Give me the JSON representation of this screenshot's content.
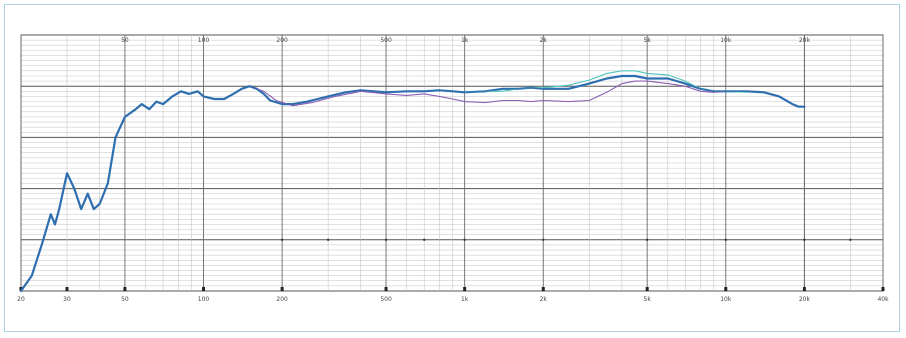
{
  "chart_data": {
    "type": "line",
    "title": "",
    "xlabel": "",
    "ylabel": "",
    "x_scale": "log",
    "xlim": [
      20,
      40000
    ],
    "y_rows": 5,
    "grid": true,
    "top_tick_labels": [
      "50",
      "100",
      "200",
      "500",
      "1k",
      "2k",
      "5k",
      "10k",
      "20k"
    ],
    "bottom_tick_labels": [
      "20",
      "30",
      "50",
      "100",
      "200",
      "500",
      "1k",
      "2k",
      "5k",
      "10k",
      "20k",
      "40k"
    ],
    "bottom_tick_values": [
      20,
      30,
      50,
      100,
      200,
      500,
      1000,
      2000,
      5000,
      10000,
      20000,
      40000
    ],
    "series": [
      {
        "color": "#2f6fb0",
        "width": 2.2,
        "points": [
          [
            20,
            0.0
          ],
          [
            22,
            0.3
          ],
          [
            24,
            0.9
          ],
          [
            26,
            1.5
          ],
          [
            27,
            1.3
          ],
          [
            28,
            1.6
          ],
          [
            30,
            2.3
          ],
          [
            32,
            2.0
          ],
          [
            34,
            1.6
          ],
          [
            36,
            1.9
          ],
          [
            38,
            1.6
          ],
          [
            40,
            1.7
          ],
          [
            43,
            2.1
          ],
          [
            46,
            3.0
          ],
          [
            50,
            3.4
          ],
          [
            55,
            3.55
          ],
          [
            58,
            3.65
          ],
          [
            62,
            3.55
          ],
          [
            66,
            3.7
          ],
          [
            70,
            3.65
          ],
          [
            76,
            3.8
          ],
          [
            82,
            3.9
          ],
          [
            88,
            3.85
          ],
          [
            95,
            3.9
          ],
          [
            100,
            3.8
          ],
          [
            110,
            3.75
          ],
          [
            120,
            3.75
          ],
          [
            130,
            3.85
          ],
          [
            140,
            3.95
          ],
          [
            150,
            4.0
          ],
          [
            160,
            3.95
          ],
          [
            170,
            3.85
          ],
          [
            180,
            3.72
          ],
          [
            200,
            3.65
          ],
          [
            220,
            3.65
          ],
          [
            250,
            3.7
          ],
          [
            300,
            3.8
          ],
          [
            350,
            3.88
          ],
          [
            400,
            3.92
          ],
          [
            450,
            3.9
          ],
          [
            500,
            3.88
          ],
          [
            600,
            3.9
          ],
          [
            700,
            3.9
          ],
          [
            800,
            3.92
          ],
          [
            900,
            3.9
          ],
          [
            1000,
            3.88
          ],
          [
            1200,
            3.9
          ],
          [
            1400,
            3.95
          ],
          [
            1600,
            3.95
          ],
          [
            1800,
            3.97
          ],
          [
            2000,
            3.95
          ],
          [
            2500,
            3.95
          ],
          [
            3000,
            4.05
          ],
          [
            3500,
            4.15
          ],
          [
            4000,
            4.2
          ],
          [
            4500,
            4.2
          ],
          [
            5000,
            4.15
          ],
          [
            6000,
            4.15
          ],
          [
            7000,
            4.05
          ],
          [
            8000,
            3.95
          ],
          [
            9000,
            3.9
          ],
          [
            10000,
            3.9
          ],
          [
            12000,
            3.9
          ],
          [
            14000,
            3.88
          ],
          [
            16000,
            3.8
          ],
          [
            18000,
            3.65
          ],
          [
            19000,
            3.6
          ],
          [
            20000,
            3.6
          ]
        ]
      },
      {
        "color": "#4fc3bc",
        "width": 1.1,
        "points": [
          [
            1000,
            3.88
          ],
          [
            1200,
            3.9
          ],
          [
            1400,
            3.9
          ],
          [
            1600,
            3.95
          ],
          [
            1800,
            3.97
          ],
          [
            2000,
            3.97
          ],
          [
            2500,
            4.02
          ],
          [
            3000,
            4.12
          ],
          [
            3500,
            4.25
          ],
          [
            4000,
            4.3
          ],
          [
            4500,
            4.3
          ],
          [
            5000,
            4.25
          ],
          [
            6000,
            4.22
          ],
          [
            7000,
            4.1
          ],
          [
            8000,
            3.95
          ],
          [
            9000,
            3.9
          ],
          [
            10000,
            3.9
          ],
          [
            12000,
            3.88
          ]
        ]
      },
      {
        "color": "#8d5fb4",
        "width": 1.1,
        "points": [
          [
            150,
            4.0
          ],
          [
            170,
            3.9
          ],
          [
            190,
            3.72
          ],
          [
            220,
            3.62
          ],
          [
            260,
            3.68
          ],
          [
            320,
            3.8
          ],
          [
            400,
            3.9
          ],
          [
            500,
            3.85
          ],
          [
            600,
            3.82
          ],
          [
            700,
            3.85
          ],
          [
            800,
            3.8
          ],
          [
            900,
            3.75
          ],
          [
            1000,
            3.7
          ],
          [
            1200,
            3.68
          ],
          [
            1400,
            3.72
          ],
          [
            1600,
            3.72
          ],
          [
            1800,
            3.7
          ],
          [
            2000,
            3.72
          ],
          [
            2500,
            3.7
          ],
          [
            3000,
            3.72
          ],
          [
            3500,
            3.88
          ],
          [
            4000,
            4.05
          ],
          [
            4500,
            4.1
          ],
          [
            5000,
            4.1
          ],
          [
            6000,
            4.05
          ],
          [
            7000,
            4.0
          ],
          [
            8000,
            3.9
          ],
          [
            9000,
            3.88
          ],
          [
            10000,
            3.9
          ]
        ]
      }
    ]
  }
}
